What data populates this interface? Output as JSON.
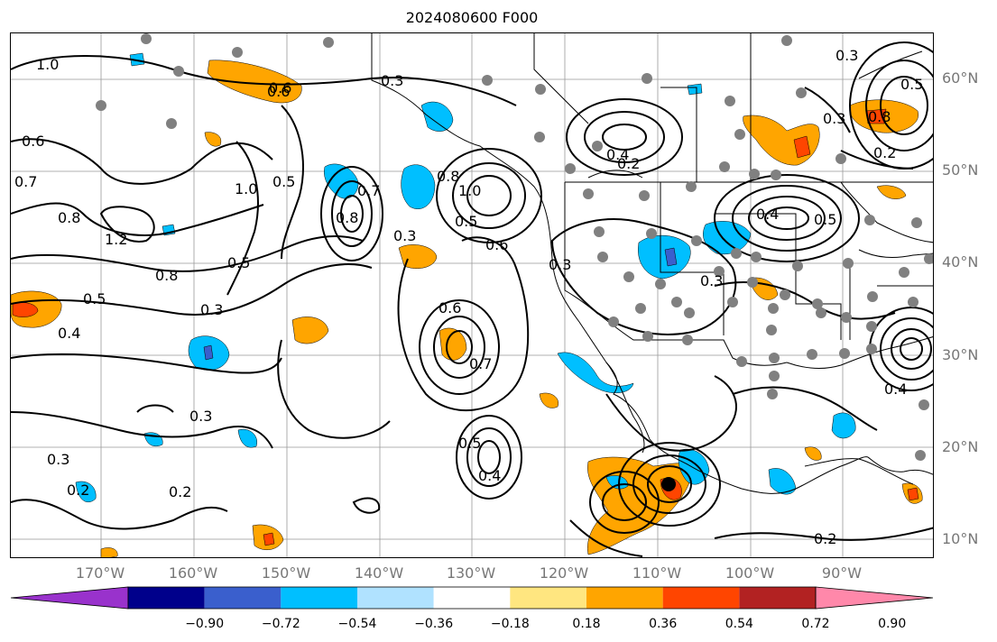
{
  "title": "2024080600 F000",
  "lat_labels": [
    "60°N",
    "50°N",
    "40°N",
    "30°N",
    "20°N",
    "10°N"
  ],
  "lon_labels": [
    "170°W",
    "160°W",
    "150°W",
    "140°W",
    "130°W",
    "120°W",
    "110°W",
    "100°W",
    "90°W"
  ],
  "contour_labels": [
    "1.0",
    "0.6",
    "0.7",
    "0.8",
    "1.2",
    "0.8",
    "0.5",
    "0.4",
    "0.3",
    "0.5",
    "0.6",
    "0.5",
    "1.0",
    "0.7",
    "0.8",
    "0.3",
    "0.8",
    "0.5",
    "1.0",
    "0.6",
    "0.6",
    "0.7",
    "0.3",
    "0.5",
    "0.4",
    "0.2",
    "0.3",
    "0.3",
    "0.2",
    "0.3",
    "0.2",
    "0.3",
    "0.4",
    "0.3",
    "0.4",
    "0.5",
    "0.8",
    "0.5",
    "0.2",
    "0.3",
    "0.4",
    "0.2",
    "0.6"
  ],
  "colorbar": {
    "ticks": [
      "−0.90",
      "−0.72",
      "−0.54",
      "−0.36",
      "−0.18",
      "0.18",
      "0.36",
      "0.54",
      "0.72",
      "0.90"
    ],
    "colors": [
      "#9932cc",
      "#00008b",
      "#3a5fcd",
      "#00bfff",
      "#b0e2ff",
      "#ffffff",
      "#ffe680",
      "#ffa500",
      "#ff4500",
      "#b22222",
      "#ff88aa"
    ]
  }
}
